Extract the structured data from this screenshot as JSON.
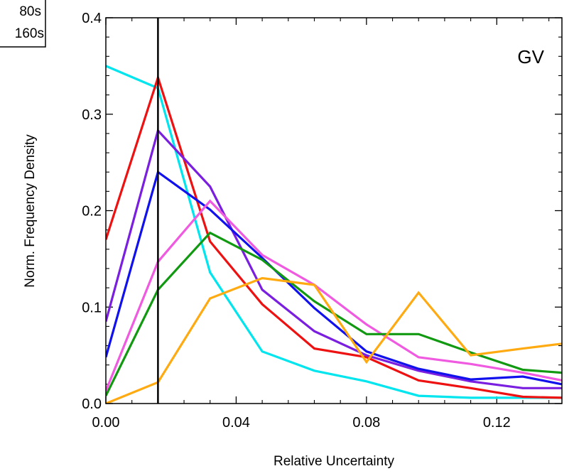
{
  "legend": {
    "entries": [
      "80s",
      "160s"
    ]
  },
  "chart_data": {
    "type": "line",
    "title": "",
    "annotation": "GV",
    "xlabel": "Relative Uncertainty",
    "ylabel": "Norm. Frequency Density",
    "xlim": [
      0.0,
      0.14
    ],
    "ylim": [
      0.0,
      0.4
    ],
    "xticks": [
      0.0,
      0.04,
      0.08,
      0.12
    ],
    "xtick_labels": [
      "0.00",
      "0.04",
      "0.08",
      "0.12"
    ],
    "yticks": [
      0.0,
      0.1,
      0.2,
      0.3,
      0.4
    ],
    "ytick_labels": [
      "0.0",
      "0.1",
      "0.2",
      "0.3",
      "0.4"
    ],
    "vertical_line": {
      "x": 0.016,
      "color": "#000000"
    },
    "x": [
      0.0,
      0.016,
      0.032,
      0.048,
      0.064,
      0.08,
      0.096,
      0.112,
      0.128,
      0.14
    ],
    "series": [
      {
        "color": "#00e5ee",
        "values": [
          0.35,
          0.327,
          0.136,
          0.054,
          0.034,
          0.023,
          0.008,
          0.006,
          0.006,
          0.006
        ]
      },
      {
        "color": "#ee1111",
        "values": [
          0.17,
          0.338,
          0.168,
          0.103,
          0.057,
          0.048,
          0.024,
          0.016,
          0.007,
          0.006
        ]
      },
      {
        "color": "#7a1ee0",
        "values": [
          0.085,
          0.283,
          0.225,
          0.118,
          0.075,
          0.05,
          0.034,
          0.023,
          0.016,
          0.016
        ]
      },
      {
        "color": "#1111ee",
        "values": [
          0.048,
          0.24,
          0.201,
          0.151,
          0.099,
          0.054,
          0.036,
          0.025,
          0.028,
          0.02
        ]
      },
      {
        "color": "#f05ae0",
        "values": [
          0.013,
          0.147,
          0.21,
          0.154,
          0.123,
          0.082,
          0.048,
          0.041,
          0.032,
          0.024
        ]
      },
      {
        "color": "#119911",
        "values": [
          0.008,
          0.118,
          0.177,
          0.149,
          0.106,
          0.072,
          0.072,
          0.053,
          0.035,
          0.032
        ]
      },
      {
        "color": "#ffaa11",
        "values": [
          0.0,
          0.022,
          0.109,
          0.13,
          0.123,
          0.043,
          0.115,
          0.05,
          0.057,
          0.062
        ]
      }
    ]
  }
}
